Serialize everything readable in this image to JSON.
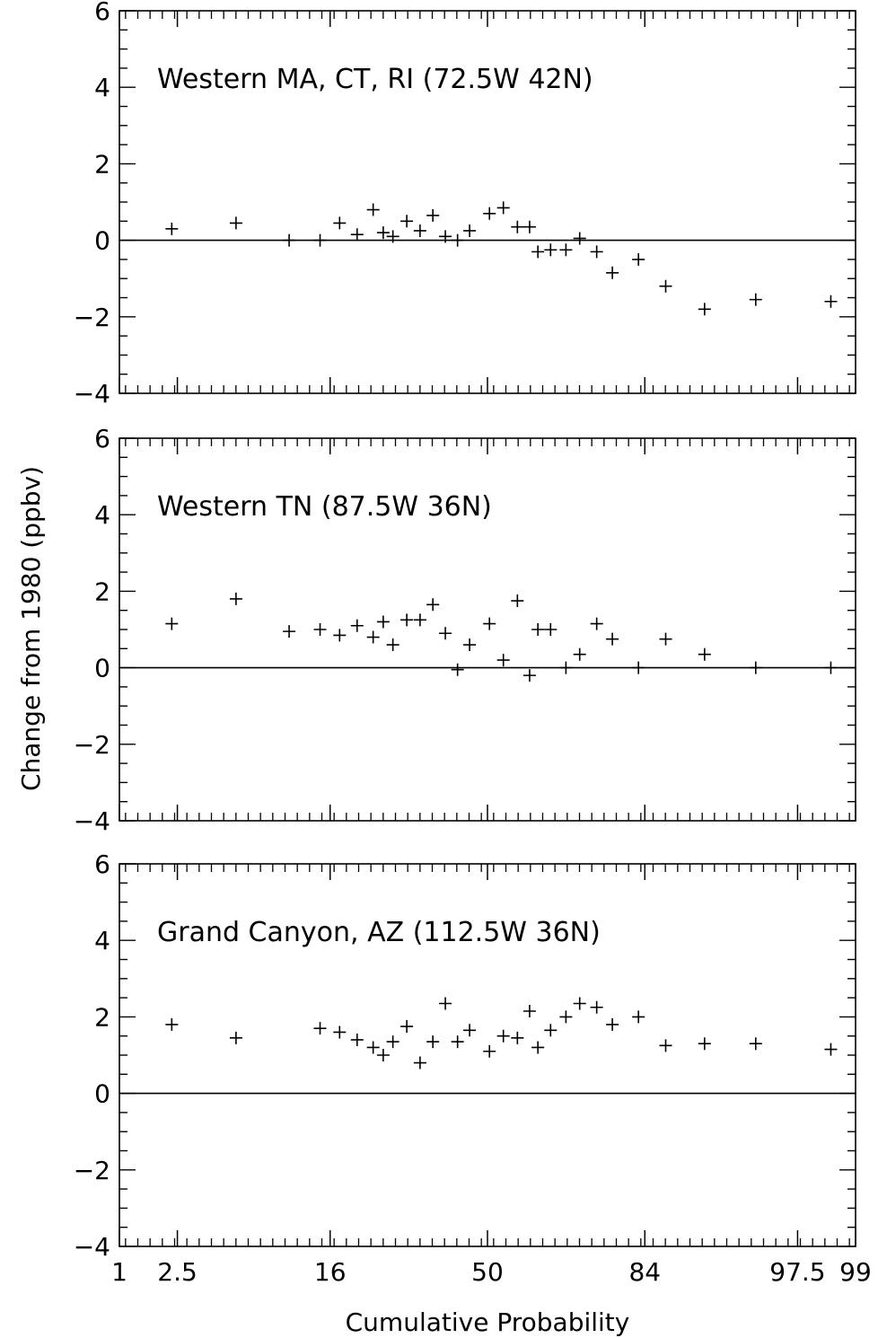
{
  "shared": {
    "ylabel": "Change from 1980 (ppbv)",
    "xlabel": "Cumulative Probability",
    "x_tick_labels": [
      "1",
      "2.5",
      "16",
      "50",
      "84",
      "97.5",
      "99"
    ],
    "y_tick_labels": [
      "−4",
      "−2",
      "0",
      "2",
      "4",
      "6"
    ]
  },
  "chart_data": [
    {
      "type": "scatter",
      "title": "Western MA, CT, RI (72.5W 42N)",
      "xlabel": "",
      "ylabel": "Change from 1980 (ppbv)",
      "x_scale": "probability",
      "ylim": [
        -4,
        6
      ],
      "marker": "plus",
      "zero_line": true,
      "x": [
        2.3,
        5.6,
        10.5,
        14.5,
        17.5,
        20.5,
        23.5,
        25.5,
        27.5,
        30.5,
        33.5,
        36.5,
        39.5,
        42.5,
        45.5,
        50.5,
        54.0,
        57.5,
        60.5,
        62.5,
        65.5,
        69.0,
        72.0,
        75.5,
        78.5,
        83.0,
        87.0,
        91.5,
        95.5,
        98.5
      ],
      "y": [
        0.3,
        0.45,
        0.0,
        0.0,
        0.45,
        0.15,
        0.8,
        0.2,
        0.1,
        0.5,
        0.25,
        0.65,
        0.1,
        0.0,
        0.25,
        0.7,
        0.85,
        0.35,
        0.35,
        -0.3,
        -0.25,
        -0.25,
        0.05,
        -0.3,
        -0.85,
        -0.5,
        -1.2,
        -1.8,
        -1.55,
        -1.6
      ]
    },
    {
      "type": "scatter",
      "title": "Western TN (87.5W 36N)",
      "xlabel": "",
      "ylabel": "Change from 1980 (ppbv)",
      "x_scale": "probability",
      "ylim": [
        -4,
        6
      ],
      "marker": "plus",
      "zero_line": true,
      "x": [
        2.3,
        5.6,
        10.5,
        14.5,
        17.5,
        20.5,
        23.5,
        25.5,
        27.5,
        30.5,
        33.5,
        36.5,
        39.5,
        42.5,
        45.5,
        50.5,
        54.0,
        57.5,
        60.5,
        62.5,
        65.5,
        69.0,
        72.0,
        75.5,
        78.5,
        83.0,
        87.0,
        91.5,
        95.5,
        98.5
      ],
      "y": [
        1.15,
        1.8,
        0.95,
        1.0,
        0.85,
        1.1,
        0.8,
        1.2,
        0.6,
        1.25,
        1.25,
        1.65,
        0.9,
        -0.05,
        0.6,
        1.15,
        0.2,
        1.75,
        -0.2,
        1.0,
        1.0,
        0.0,
        0.35,
        1.15,
        0.75,
        0.0,
        0.75,
        0.35,
        0.0,
        0.0
      ]
    },
    {
      "type": "scatter",
      "title": "Grand Canyon, AZ (112.5W 36N)",
      "xlabel": "Cumulative Probability",
      "ylabel": "Change from 1980 (ppbv)",
      "x_scale": "probability",
      "ylim": [
        -4,
        6
      ],
      "marker": "plus",
      "zero_line": true,
      "x": [
        2.3,
        5.6,
        14.5,
        17.5,
        20.5,
        23.5,
        25.5,
        27.5,
        30.5,
        33.5,
        36.5,
        39.5,
        42.5,
        45.5,
        50.5,
        54.0,
        57.5,
        60.5,
        62.5,
        65.5,
        69.0,
        72.0,
        75.5,
        78.5,
        83.0,
        87.0,
        91.5,
        95.5,
        98.5
      ],
      "y": [
        1.8,
        1.45,
        1.7,
        1.6,
        1.4,
        1.2,
        1.0,
        1.35,
        1.75,
        0.8,
        1.35,
        2.35,
        1.35,
        1.65,
        1.1,
        1.5,
        1.45,
        2.15,
        1.2,
        1.65,
        2.0,
        2.35,
        2.25,
        1.8,
        2.0,
        1.25,
        1.3,
        1.3,
        1.15
      ]
    }
  ]
}
